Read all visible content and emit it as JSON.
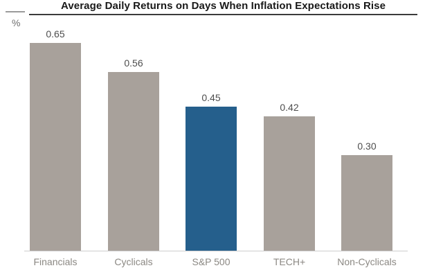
{
  "header": {
    "title": "Average Daily Returns on Days When Inflation Expectations Rise",
    "y_axis_unit": "%"
  },
  "chart_data": {
    "type": "bar",
    "title": "Average Daily Returns on Days When Inflation Expectations Rise",
    "xlabel": "",
    "ylabel": "%",
    "categories": [
      "Financials",
      "Cyclicals",
      "S&P 500",
      "TECH+",
      "Non-Cyclicals"
    ],
    "values": [
      0.65,
      0.56,
      0.45,
      0.42,
      0.3
    ],
    "value_labels": [
      "0.65",
      "0.56",
      "0.45",
      "0.42",
      "0.30"
    ],
    "ylim": [
      0,
      0.7
    ],
    "grid": false,
    "legend_position": "none",
    "highlight_category": "S&P 500",
    "colors": {
      "bar_default": "#A8A19B",
      "bar_highlight": "#255F8C",
      "title_text": "#191919",
      "title_underline": "#3B3B3B",
      "value_label": "#4D4D4D",
      "axis_label": "#8B8883",
      "baseline": "#CDCDCD",
      "unit_label": "#6E6E6E",
      "background": "#FFFFFF"
    }
  }
}
